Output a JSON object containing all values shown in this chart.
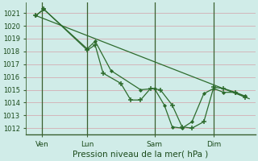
{
  "bg_color": "#d0ece8",
  "grid_color": "#d4a0a8",
  "line_color": "#2d6b2d",
  "xlabel": "Pression niveau de la mer( hPa )",
  "ylim": [
    1011.5,
    1021.8
  ],
  "yticks": [
    1012,
    1013,
    1014,
    1015,
    1016,
    1017,
    1018,
    1019,
    1020,
    1021
  ],
  "xlim": [
    -0.3,
    11.3
  ],
  "xtick_labels": [
    "Ven",
    "Lun",
    "Sam",
    "Dim"
  ],
  "xtick_positions": [
    0.5,
    2.8,
    6.2,
    9.2
  ],
  "vline_positions": [
    0.5,
    2.8,
    6.2,
    9.2
  ],
  "series_trend": {
    "x": [
      0.2,
      11.0
    ],
    "y": [
      1020.8,
      1014.3
    ]
  },
  "series_main": {
    "x": [
      0.2,
      0.6,
      2.8,
      3.2,
      3.6,
      4.5,
      5.0,
      5.5,
      6.0,
      6.5,
      7.1,
      7.6,
      8.1,
      8.7,
      9.2,
      9.7,
      10.3,
      10.8
    ],
    "y": [
      1020.8,
      1021.3,
      1018.1,
      1018.5,
      1016.3,
      1015.5,
      1014.2,
      1014.2,
      1015.1,
      1015.0,
      1013.8,
      1012.1,
      1012.0,
      1012.5,
      1015.2,
      1015.1,
      1014.8,
      1014.4
    ],
    "marker": "+"
  },
  "series_secondary": {
    "x": [
      0.2,
      0.6,
      2.8,
      3.2,
      4.0,
      5.5,
      6.2,
      6.7,
      7.1,
      7.6,
      8.1,
      8.7,
      9.2,
      9.7,
      10.3,
      10.8
    ],
    "y": [
      1020.8,
      1021.3,
      1018.2,
      1018.8,
      1016.5,
      1015.0,
      1015.1,
      1013.8,
      1012.1,
      1012.0,
      1012.5,
      1014.7,
      1015.1,
      1014.8,
      1014.8,
      1014.5
    ],
    "marker": "D"
  },
  "ylabel_fontsize": 6,
  "xlabel_fontsize": 7.5,
  "tick_fontsize": 6.5
}
